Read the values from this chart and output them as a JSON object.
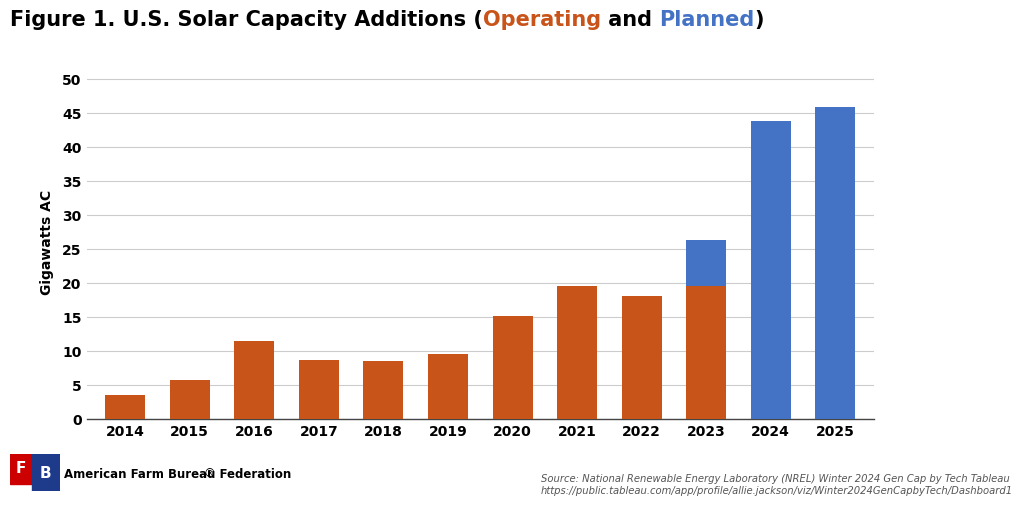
{
  "years": [
    "2014",
    "2015",
    "2016",
    "2017",
    "2018",
    "2019",
    "2020",
    "2021",
    "2022",
    "2023",
    "2024",
    "2025"
  ],
  "operating": [
    3.5,
    5.7,
    11.4,
    8.7,
    8.6,
    9.5,
    15.1,
    19.5,
    18.1,
    19.5,
    0.0,
    0.0
  ],
  "planned": [
    0.0,
    0.0,
    0.0,
    0.0,
    0.0,
    0.0,
    0.0,
    0.0,
    0.0,
    6.8,
    43.8,
    45.8
  ],
  "operating_color": "#C8541A",
  "planned_color": "#4472C4",
  "bg_color": "#FFFFFF",
  "plot_bg_color": "#FFFFFF",
  "title_parts": [
    [
      "Figure 1. U.S. Solar Capacity Additions (",
      "black"
    ],
    [
      "Operating",
      "#C8541A"
    ],
    [
      " and ",
      "black"
    ],
    [
      "Planned",
      "#4472C4"
    ],
    [
      ")",
      "black"
    ]
  ],
  "ylabel": "Gigawatts AC",
  "ylim": [
    0,
    52
  ],
  "yticks": [
    0,
    5,
    10,
    15,
    20,
    25,
    30,
    35,
    40,
    45,
    50
  ],
  "grid_color": "#CCCCCC",
  "source_line1": "Source: National Renewable Energy Laboratory (NREL) Winter 2024 Gen Cap by Tech Tableau",
  "source_line2": "https://public.tableau.com/app/profile/allie.jackson/viz/Winter2024GenCapbyTech/Dashboard1",
  "footer_text": "American Farm Bureau Federation",
  "footer_reg": "®",
  "title_fontsize": 15,
  "axis_label_fontsize": 10,
  "tick_fontsize": 10,
  "source_fontsize": 7.2,
  "footer_fontsize": 8.5,
  "bar_width": 0.62,
  "logo_red": "#CC0000",
  "logo_blue": "#1E3A8A"
}
